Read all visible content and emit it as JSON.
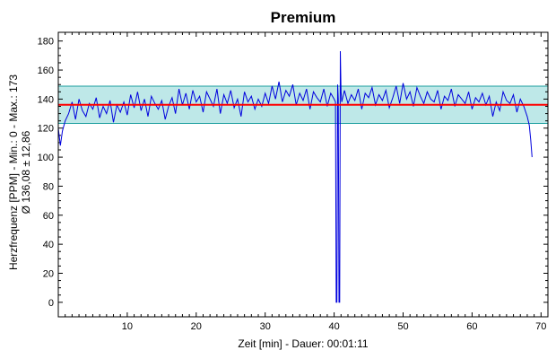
{
  "chart_data": {
    "type": "line",
    "title": "Premium",
    "xlabel": "Zeit [min] - Dauer: 00:01:11",
    "ylabel_line1": "Herzfrequenz [PPM] - Min.: 0 - Max.: 173",
    "ylabel_line2": "Ø 136,08 ± 12,86",
    "xlim": [
      0,
      71
    ],
    "ylim": [
      -10,
      186
    ],
    "x_ticks": [
      10,
      20,
      30,
      40,
      50,
      60,
      70
    ],
    "y_ticks": [
      0,
      20,
      40,
      60,
      80,
      100,
      120,
      140,
      160,
      180
    ],
    "x_tick_labels": [
      "10",
      "20",
      "30",
      "40",
      "50",
      "60",
      "70"
    ],
    "y_tick_labels": [
      "0",
      "20",
      "40",
      "60",
      "80",
      "100",
      "120",
      "140",
      "160",
      "180"
    ],
    "mean": 136.08,
    "std": 12.86,
    "min": 0,
    "max": 173,
    "colors": {
      "line": "#0000dd",
      "mean_line": "#ff0000",
      "band_fill": "#a8e0e0",
      "band_border": "#1a9e9e",
      "axis": "#000000"
    },
    "series": [
      {
        "x": [
          0.0,
          0.3,
          0.6,
          1.0,
          1.5,
          2.0,
          2.5,
          3.0,
          3.5,
          4.0,
          4.5,
          5.0,
          5.5,
          6.0,
          6.5,
          7.0,
          7.5,
          8.0,
          8.5,
          9.0,
          9.5,
          10.0,
          10.5,
          11.0,
          11.5,
          12.0,
          12.5,
          13.0,
          13.5,
          14.0,
          14.5,
          15.0,
          15.5,
          16.0,
          16.5,
          17.0,
          17.5,
          18.0,
          18.5,
          19.0,
          19.5,
          20.0,
          20.5,
          21.0,
          21.5,
          22.0,
          22.5,
          23.0,
          23.5,
          24.0,
          24.5,
          25.0,
          25.5,
          26.0,
          26.5,
          27.0,
          27.5,
          28.0,
          28.5,
          29.0,
          29.5,
          30.0,
          30.5,
          31.0,
          31.5,
          32.0,
          32.5,
          33.0,
          33.5,
          34.0,
          34.5,
          35.0,
          35.5,
          36.0,
          36.5,
          37.0,
          37.5,
          38.0,
          38.5,
          39.0,
          39.5,
          40.0,
          40.2,
          40.3,
          40.4,
          40.5,
          40.6,
          40.7,
          40.8,
          40.9,
          41.0,
          41.1,
          41.2,
          41.5,
          42.0,
          42.5,
          43.0,
          43.5,
          44.0,
          44.5,
          45.0,
          45.5,
          46.0,
          46.5,
          47.0,
          47.5,
          48.0,
          48.5,
          49.0,
          49.5,
          50.0,
          50.5,
          51.0,
          51.5,
          52.0,
          52.5,
          53.0,
          53.5,
          54.0,
          54.5,
          55.0,
          55.5,
          56.0,
          56.5,
          57.0,
          57.5,
          58.0,
          58.5,
          59.0,
          59.5,
          60.0,
          60.5,
          61.0,
          61.5,
          62.0,
          62.5,
          63.0,
          63.5,
          64.0,
          64.5,
          65.0,
          65.5,
          66.0,
          66.5,
          67.0,
          67.5,
          68.0,
          68.3,
          68.5,
          68.7
        ],
        "y": [
          120,
          108,
          118,
          125,
          130,
          138,
          126,
          140,
          132,
          128,
          137,
          133,
          141,
          127,
          135,
          130,
          139,
          124,
          136,
          131,
          138,
          129,
          143,
          134,
          145,
          132,
          140,
          128,
          142,
          137,
          133,
          139,
          126,
          135,
          141,
          130,
          147,
          136,
          144,
          133,
          146,
          138,
          142,
          131,
          145,
          140,
          135,
          147,
          130,
          143,
          137,
          146,
          134,
          140,
          128,
          145,
          138,
          142,
          133,
          140,
          135,
          144,
          137,
          149,
          140,
          152,
          138,
          146,
          142,
          150,
          136,
          144,
          139,
          147,
          133,
          145,
          141,
          138,
          147,
          135,
          144,
          140,
          138,
          0,
          0,
          150,
          140,
          0,
          0,
          173,
          145,
          138,
          140,
          146,
          137,
          143,
          139,
          147,
          133,
          144,
          141,
          148,
          136,
          143,
          139,
          146,
          134,
          141,
          149,
          137,
          151,
          140,
          145,
          135,
          148,
          142,
          137,
          145,
          140,
          138,
          146,
          133,
          142,
          139,
          147,
          135,
          143,
          140,
          137,
          145,
          133,
          141,
          138,
          144,
          136,
          142,
          128,
          138,
          132,
          145,
          139,
          137,
          143,
          131,
          140,
          135,
          128,
          122,
          112,
          100
        ]
      }
    ]
  }
}
